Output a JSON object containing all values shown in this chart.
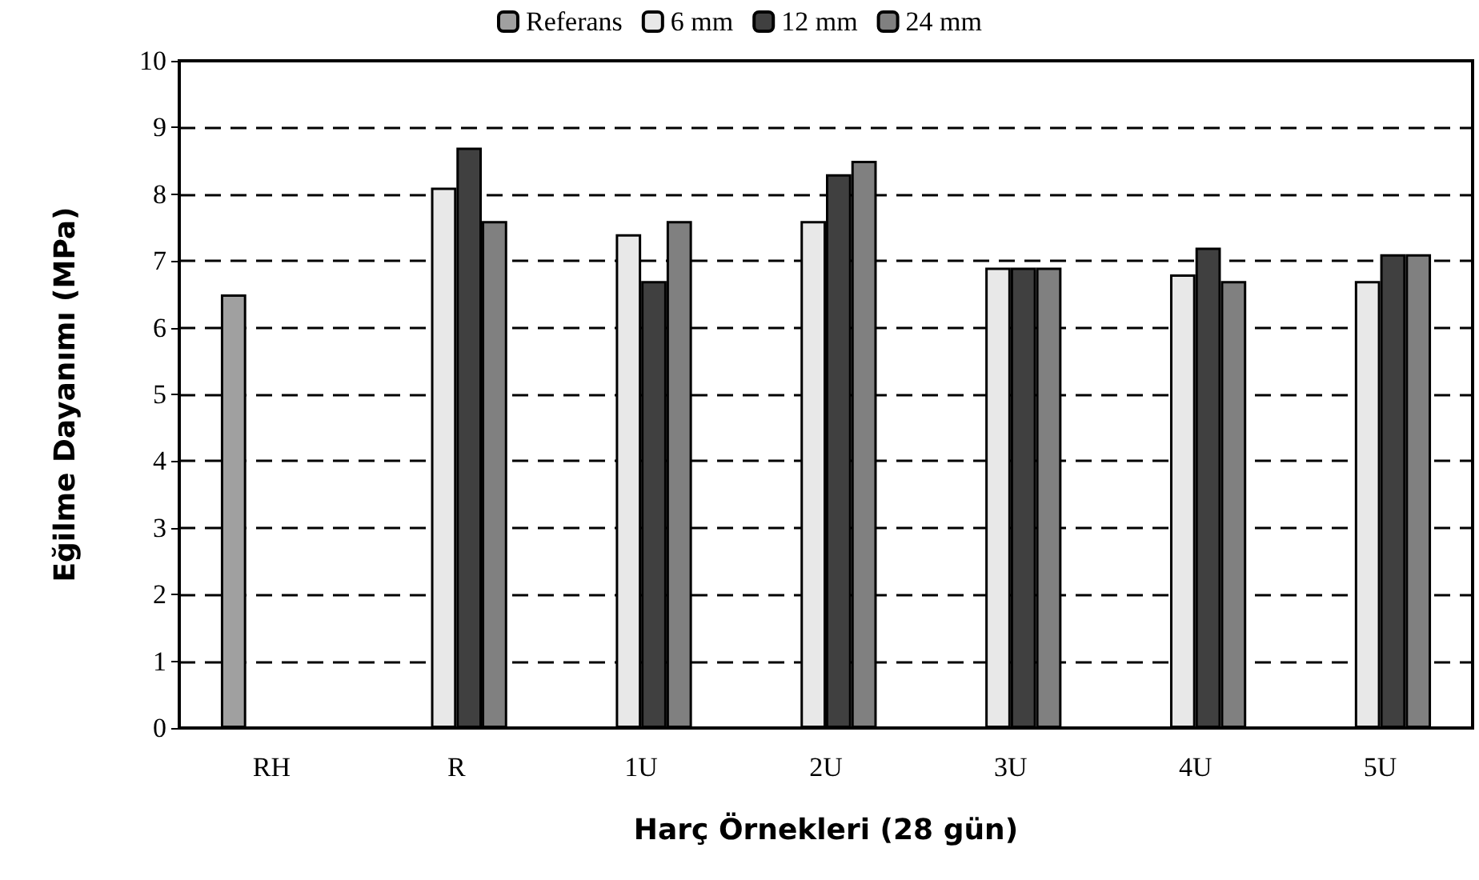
{
  "chart_data": {
    "type": "bar",
    "xlabel": "Harç Örnekleri (28 gün)",
    "ylabel": "Eğilme Dayanımı (MPa)",
    "categories": [
      "RH",
      "R",
      "1U",
      "2U",
      "3U",
      "4U",
      "5U"
    ],
    "series": [
      {
        "name": "Referans",
        "color": "#a0a0a0",
        "values": [
          6.5,
          null,
          null,
          null,
          null,
          null,
          null
        ]
      },
      {
        "name": "6 mm",
        "color": "#e8e8e8",
        "values": [
          null,
          8.1,
          7.4,
          7.6,
          6.9,
          6.8,
          6.7
        ]
      },
      {
        "name": "12 mm",
        "color": "#404040",
        "values": [
          null,
          8.7,
          6.7,
          8.3,
          6.9,
          7.2,
          7.1
        ]
      },
      {
        "name": "24 mm",
        "color": "#808080",
        "values": [
          null,
          7.6,
          7.6,
          8.5,
          6.9,
          6.7,
          7.1
        ]
      }
    ],
    "ylim": [
      0,
      10
    ],
    "yticks": [
      0,
      1,
      2,
      3,
      4,
      5,
      6,
      7,
      8,
      9,
      10
    ],
    "grid": "y",
    "legend": "top"
  }
}
